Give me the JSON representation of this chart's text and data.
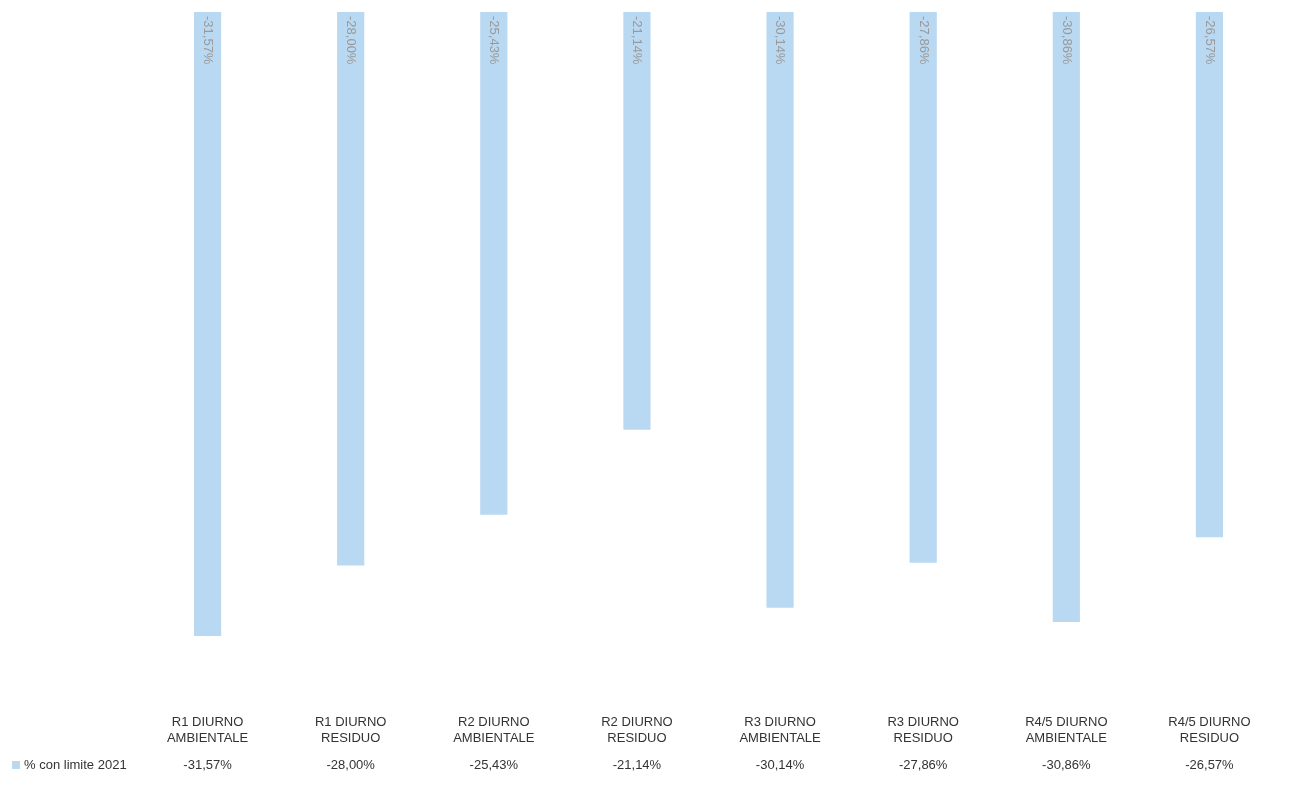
{
  "chart_data": {
    "type": "bar",
    "categories": [
      "R1 DIURNO AMBIENTALE",
      "R1 DIURNO RESIDUO",
      "R2 DIURNO AMBIENTALE",
      "R2 DIURNO RESIDUO",
      "R3 DIURNO AMBIENTALE",
      "R3 DIURNO RESIDUO",
      "R4/5 DIURNO AMBIENTALE",
      "R4/5 DIURNO RESIDUO"
    ],
    "series": [
      {
        "name": "% con limite 2021",
        "color": "#b9d8f2",
        "values": [
          -31.57,
          -28.0,
          -25.43,
          -21.14,
          -30.14,
          -27.86,
          -30.86,
          -26.57
        ],
        "value_labels": [
          "-31,57%",
          "-28,00%",
          "-25,43%",
          "-21,14%",
          "-30,14%",
          "-27,86%",
          "-30,86%",
          "-26,57%"
        ]
      }
    ],
    "legend": "bottom left",
    "grid": false
  }
}
